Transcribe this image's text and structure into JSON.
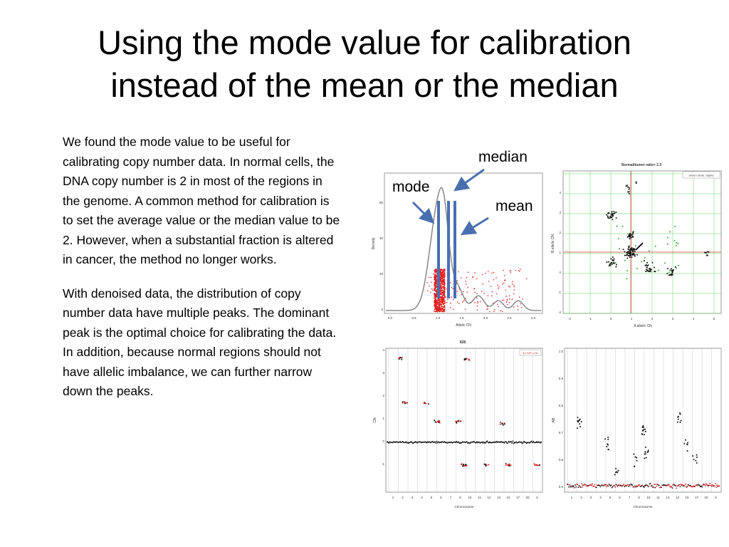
{
  "slide": {
    "title_line1": "Using the mode value for calibration",
    "title_line2": "instead of the mean or the median",
    "paragraph1": "We found the mode value to be useful for calibrating copy number data. In normal cells, the DNA copy number is 2 in most of the regions in the genome. A common method for calibration is to set the average value or the median value to be 2.  However, when a substantial fraction is altered in cancer, the method no longer works.",
    "paragraph2": "With denoised data, the distribution of copy number data have multiple peaks. The dominant peak is the optimal choice for calibrating the data. In addition, because normal regions should not have allelic imbalance, we can further narrow down the peaks."
  },
  "callouts": {
    "median": "median",
    "mode": "mode",
    "mean": "mean"
  },
  "density_plot": {
    "xlabel": "Allelic CN",
    "ylabel": "Density",
    "xticks": [
      "0.0",
      "0.5",
      "1.0",
      "1.5",
      "2.0",
      "2.5",
      "3.0"
    ],
    "yticks": [
      "0",
      "20",
      "40",
      "60"
    ],
    "line_color": "#4a6fb0"
  },
  "scatter_plot": {
    "title": "Normal/tumor ratio= 2.3",
    "legend": "Green circle: Sigma",
    "xlabel": "A allelic CN",
    "ylabel": "B allelic CN",
    "xticks": [
      "-2",
      "-1",
      "0",
      "1",
      "2",
      "3",
      "4",
      "5"
    ],
    "yticks": [
      "-2",
      "-1",
      "0",
      "1",
      "2",
      "3",
      "4"
    ]
  },
  "cn_plot": {
    "title": "828",
    "legend": "● CNF-LOH",
    "ylabel": "CN",
    "xlabel": "Chromosome",
    "chromosomes": [
      "1",
      "2",
      "3",
      "4",
      "5",
      "6",
      "7",
      "8",
      "10",
      "11",
      "12",
      "13",
      "15",
      "17",
      "20",
      "X"
    ],
    "yticks": [
      "-1",
      "0",
      "1",
      "2",
      "3",
      "4"
    ]
  },
  "baf_plot": {
    "ylabel": "AB",
    "xlabel": "Chromosome",
    "chromosomes": [
      "1",
      "2",
      "3",
      "4",
      "5",
      "6",
      "7",
      "8",
      "10",
      "11",
      "12",
      "13",
      "15",
      "17",
      "20",
      "X"
    ],
    "yticks": [
      "0.5",
      "0.6",
      "0.7",
      "0.8",
      "0.9",
      "1.0"
    ]
  }
}
